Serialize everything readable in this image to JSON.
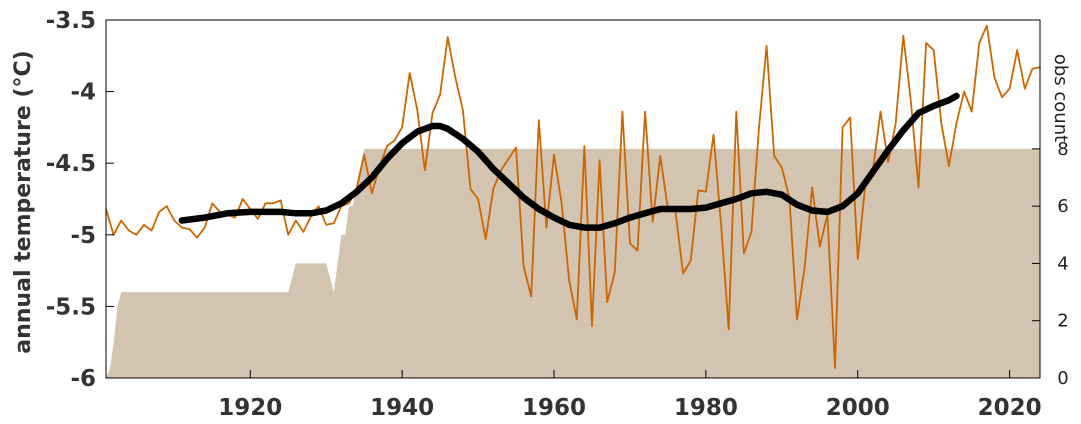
{
  "chart_data": {
    "type": "line",
    "title": "",
    "xlabel": "",
    "ylabel": "annual temperature (°C)",
    "y2label": "obs count",
    "xlim": [
      1901,
      2024
    ],
    "ylim": [
      -6,
      -3.5
    ],
    "y2lim": [
      0,
      12.5
    ],
    "x_ticks": [
      1920,
      1940,
      1960,
      1980,
      2000,
      2020
    ],
    "y_ticks": [
      -6,
      -5.5,
      -5,
      -4.5,
      -4,
      -3.5
    ],
    "y_tick_labels": [
      "-6",
      "-5.5",
      "-5",
      "-4.5",
      "-4",
      "-3.5"
    ],
    "y2_ticks": [
      0,
      2,
      4,
      6,
      8
    ],
    "grid": false,
    "colors": {
      "annual": "#cc6600",
      "smoothed": "#000000",
      "obs": "#d3c4b1"
    },
    "series": [
      {
        "key": "annual",
        "style": "line",
        "x": [
          1901,
          1902,
          1903,
          1904,
          1905,
          1906,
          1907,
          1908,
          1909,
          1910,
          1911,
          1912,
          1913,
          1914,
          1915,
          1916,
          1917,
          1918,
          1919,
          1920,
          1921,
          1922,
          1923,
          1924,
          1925,
          1926,
          1927,
          1928,
          1929,
          1930,
          1931,
          1932,
          1933,
          1934,
          1935,
          1936,
          1937,
          1938,
          1939,
          1940,
          1941,
          1942,
          1943,
          1944,
          1945,
          1946,
          1947,
          1948,
          1949,
          1950,
          1951,
          1952,
          1953,
          1954,
          1955,
          1956,
          1957,
          1958,
          1959,
          1960,
          1961,
          1962,
          1963,
          1964,
          1965,
          1966,
          1967,
          1968,
          1969,
          1970,
          1971,
          1972,
          1973,
          1974,
          1975,
          1976,
          1977,
          1978,
          1979,
          1980,
          1981,
          1982,
          1983,
          1984,
          1985,
          1986,
          1987,
          1988,
          1989,
          1990,
          1991,
          1992,
          1993,
          1994,
          1995,
          1996,
          1997,
          1998,
          1999,
          2000,
          2001,
          2002,
          2003,
          2004,
          2005,
          2006,
          2007,
          2008,
          2009,
          2010,
          2011,
          2012,
          2013,
          2014,
          2015,
          2016,
          2017,
          2018,
          2019,
          2020,
          2021,
          2022,
          2023,
          2024
        ],
        "values": [
          -4.82,
          -5.0,
          -4.9,
          -4.97,
          -5.0,
          -4.93,
          -4.97,
          -4.84,
          -4.8,
          -4.9,
          -4.95,
          -4.96,
          -5.02,
          -4.95,
          -4.78,
          -4.84,
          -4.86,
          -4.88,
          -4.75,
          -4.82,
          -4.89,
          -4.78,
          -4.78,
          -4.76,
          -5.0,
          -4.9,
          -4.98,
          -4.87,
          -4.8,
          -4.93,
          -4.92,
          -4.8,
          -4.78,
          -4.68,
          -4.44,
          -4.71,
          -4.53,
          -4.38,
          -4.34,
          -4.25,
          -3.87,
          -4.13,
          -4.55,
          -4.15,
          -4.02,
          -3.62,
          -3.9,
          -4.13,
          -4.68,
          -4.75,
          -5.03,
          -4.68,
          -4.55,
          -4.47,
          -4.39,
          -5.22,
          -5.43,
          -4.2,
          -4.95,
          -4.44,
          -4.78,
          -5.32,
          -5.59,
          -4.38,
          -5.64,
          -4.48,
          -5.47,
          -5.26,
          -4.14,
          -5.06,
          -5.11,
          -4.14,
          -4.91,
          -4.45,
          -4.82,
          -4.84,
          -5.27,
          -5.18,
          -4.69,
          -4.7,
          -4.3,
          -4.93,
          -5.66,
          -4.14,
          -5.13,
          -4.98,
          -4.25,
          -3.68,
          -4.45,
          -4.53,
          -4.74,
          -5.59,
          -5.23,
          -4.67,
          -5.08,
          -4.86,
          -5.93,
          -4.25,
          -4.18,
          -5.17,
          -4.65,
          -4.55,
          -4.14,
          -4.49,
          -4.22,
          -3.61,
          -4.07,
          -4.67,
          -3.66,
          -3.71,
          -4.22,
          -4.52,
          -4.22,
          -4.0,
          -4.14,
          -3.66,
          -3.54,
          -3.9,
          -4.04,
          -3.98,
          -3.71,
          -3.98,
          -3.84,
          -3.83
        ]
      },
      {
        "key": "smoothed",
        "style": "line",
        "x": [
          1911,
          1914,
          1917,
          1920,
          1922,
          1924,
          1926,
          1928,
          1930,
          1932,
          1934,
          1936,
          1938,
          1940,
          1942,
          1944,
          1945,
          1946,
          1948,
          1950,
          1952,
          1954,
          1956,
          1958,
          1960,
          1962,
          1964,
          1966,
          1968,
          1970,
          1972,
          1974,
          1976,
          1978,
          1980,
          1982,
          1984,
          1986,
          1988,
          1990,
          1992,
          1994,
          1996,
          1998,
          2000,
          2002,
          2004,
          2006,
          2008,
          2010,
          2012,
          2013
        ],
        "values": [
          -4.9,
          -4.88,
          -4.85,
          -4.84,
          -4.84,
          -4.84,
          -4.85,
          -4.85,
          -4.83,
          -4.78,
          -4.7,
          -4.6,
          -4.47,
          -4.36,
          -4.28,
          -4.24,
          -4.24,
          -4.26,
          -4.33,
          -4.42,
          -4.54,
          -4.64,
          -4.74,
          -4.82,
          -4.88,
          -4.93,
          -4.95,
          -4.95,
          -4.92,
          -4.88,
          -4.85,
          -4.82,
          -4.82,
          -4.82,
          -4.81,
          -4.78,
          -4.75,
          -4.71,
          -4.7,
          -4.72,
          -4.79,
          -4.83,
          -4.84,
          -4.8,
          -4.71,
          -4.56,
          -4.41,
          -4.27,
          -4.15,
          -4.1,
          -4.06,
          -4.03
        ]
      },
      {
        "key": "obs_count",
        "style": "area",
        "axis": "right",
        "x": [
          1901,
          1901.5,
          1902,
          1902.5,
          1903,
          1925,
          1926,
          1927,
          1928,
          1929,
          1930,
          1931,
          1932,
          1932.5,
          1933,
          1933.5,
          1934,
          1935,
          2024
        ],
        "values": [
          0,
          0.3,
          1.2,
          2.5,
          3,
          3,
          4,
          4,
          4,
          4,
          4,
          3,
          5,
          5,
          6,
          6,
          6.8,
          8,
          8
        ]
      }
    ]
  }
}
